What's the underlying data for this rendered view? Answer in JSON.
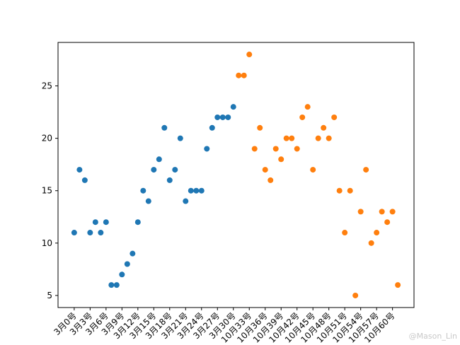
{
  "chart_data": {
    "type": "scatter",
    "series": [
      {
        "color": "#1f77b4",
        "x": [
          0,
          1,
          2,
          3,
          4,
          5,
          6,
          7,
          8,
          9,
          10,
          11,
          12,
          13,
          14,
          15,
          16,
          17,
          18,
          19,
          20,
          21,
          22,
          23,
          24,
          25,
          26,
          27,
          28,
          29,
          30
        ],
        "values": [
          11,
          17,
          16,
          11,
          12,
          11,
          12,
          6,
          6,
          7,
          8,
          9,
          12,
          15,
          14,
          17,
          18,
          21,
          16,
          17,
          20,
          14,
          15,
          15,
          15,
          19,
          21,
          22,
          22,
          22,
          23
        ]
      },
      {
        "color": "#ff7f0e",
        "x": [
          31,
          32,
          33,
          34,
          35,
          36,
          37,
          38,
          39,
          40,
          41,
          42,
          43,
          44,
          45,
          46,
          47,
          48,
          49,
          50,
          51,
          52,
          53,
          54,
          55,
          56,
          57,
          58,
          59,
          60,
          61
        ],
        "values": [
          26,
          26,
          28,
          19,
          21,
          17,
          16,
          19,
          18,
          20,
          20,
          19,
          22,
          23,
          17,
          20,
          21,
          20,
          22,
          15,
          11,
          15,
          5,
          13,
          17,
          10,
          11,
          13,
          12,
          13,
          6
        ]
      }
    ],
    "xlim": [
      -3.05,
      64.05
    ],
    "xticks": [
      {
        "value": 0,
        "label": "3月0号"
      },
      {
        "value": 3,
        "label": "3月3号"
      },
      {
        "value": 6,
        "label": "3月6号"
      },
      {
        "value": 9,
        "label": "3月9号"
      },
      {
        "value": 12,
        "label": "3月12号"
      },
      {
        "value": 15,
        "label": "3月15号"
      },
      {
        "value": 18,
        "label": "3月18号"
      },
      {
        "value": 21,
        "label": "3月21号"
      },
      {
        "value": 24,
        "label": "3月24号"
      },
      {
        "value": 27,
        "label": "3月27号"
      },
      {
        "value": 30,
        "label": "3月30号"
      },
      {
        "value": 33,
        "label": "10月33号"
      },
      {
        "value": 36,
        "label": "10月36号"
      },
      {
        "value": 39,
        "label": "10月39号"
      },
      {
        "value": 42,
        "label": "10月42号"
      },
      {
        "value": 45,
        "label": "10月45号"
      },
      {
        "value": 48,
        "label": "10月48号"
      },
      {
        "value": 51,
        "label": "10月51号"
      },
      {
        "value": 54,
        "label": "10月54号"
      },
      {
        "value": 57,
        "label": "10月57号"
      },
      {
        "value": 60,
        "label": "10月60号"
      }
    ],
    "ylim": [
      3.85,
      29.15
    ],
    "yticks": [
      5,
      10,
      15,
      20,
      25
    ],
    "watermark": "@Mason_Lin"
  }
}
